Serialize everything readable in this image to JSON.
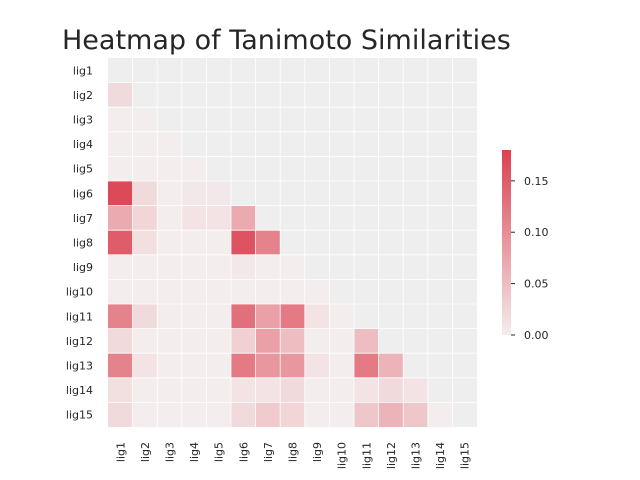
{
  "chart_data": {
    "type": "heatmap",
    "title": "Heatmap of Tanimoto Similarities",
    "xlabel": "",
    "ylabel": "",
    "mask": "lower-triangle (cells where column index >= row index shown as empty background)",
    "row_labels": [
      "lig1",
      "lig2",
      "lig3",
      "lig4",
      "lig5",
      "lig6",
      "lig7",
      "lig8",
      "lig9",
      "lig10",
      "lig11",
      "lig12",
      "lig13",
      "lig14",
      "lig15"
    ],
    "col_labels": [
      "lig1",
      "lig2",
      "lig3",
      "lig4",
      "lig5",
      "lig6",
      "lig7",
      "lig8",
      "lig9",
      "lig10",
      "lig11",
      "lig12",
      "lig13",
      "lig14",
      "lig15"
    ],
    "values": [
      [
        null,
        null,
        null,
        null,
        null,
        null,
        null,
        null,
        null,
        null,
        null,
        null,
        null,
        null,
        null
      ],
      [
        0.02,
        null,
        null,
        null,
        null,
        null,
        null,
        null,
        null,
        null,
        null,
        null,
        null,
        null,
        null
      ],
      [
        0.0,
        0.0,
        null,
        null,
        null,
        null,
        null,
        null,
        null,
        null,
        null,
        null,
        null,
        null,
        null
      ],
      [
        0.0,
        0.0,
        0.0,
        null,
        null,
        null,
        null,
        null,
        null,
        null,
        null,
        null,
        null,
        null,
        null
      ],
      [
        0.0,
        0.0,
        0.0,
        0.0,
        null,
        null,
        null,
        null,
        null,
        null,
        null,
        null,
        null,
        null,
        null
      ],
      [
        0.17,
        0.02,
        0.0,
        0.005,
        0.005,
        null,
        null,
        null,
        null,
        null,
        null,
        null,
        null,
        null,
        null
      ],
      [
        0.07,
        0.025,
        0.0,
        0.01,
        0.01,
        0.07,
        null,
        null,
        null,
        null,
        null,
        null,
        null,
        null,
        null
      ],
      [
        0.15,
        0.015,
        0.0,
        0.0,
        0.0,
        0.16,
        0.11,
        null,
        null,
        null,
        null,
        null,
        null,
        null,
        null
      ],
      [
        0.0,
        0.0,
        0.0,
        0.0,
        0.0,
        0.005,
        0.0,
        0.0,
        null,
        null,
        null,
        null,
        null,
        null,
        null
      ],
      [
        0.0,
        0.0,
        0.0,
        0.0,
        0.0,
        0.0,
        0.0,
        0.0,
        0.0,
        null,
        null,
        null,
        null,
        null,
        null
      ],
      [
        0.11,
        0.02,
        0.0,
        0.0,
        0.0,
        0.13,
        0.08,
        0.12,
        0.01,
        0.0,
        null,
        null,
        null,
        null,
        null
      ],
      [
        0.02,
        0.0,
        0.0,
        0.0,
        0.0,
        0.03,
        0.08,
        0.05,
        0.0,
        0.0,
        0.05,
        null,
        null,
        null,
        null
      ],
      [
        0.11,
        0.01,
        0.0,
        0.0,
        0.0,
        0.12,
        0.09,
        0.09,
        0.01,
        0.0,
        0.12,
        0.06,
        null,
        null,
        null
      ],
      [
        0.015,
        0.0,
        0.0,
        0.0,
        0.0,
        0.01,
        0.01,
        0.02,
        0.0,
        0.0,
        0.01,
        0.02,
        0.01,
        null,
        null
      ],
      [
        0.02,
        0.0,
        0.0,
        0.0,
        0.0,
        0.02,
        0.035,
        0.025,
        0.0,
        0.0,
        0.04,
        0.06,
        0.04,
        0.0,
        null
      ]
    ],
    "colorbar": {
      "vmin": 0.0,
      "vmax": 0.18,
      "ticks": [
        0.0,
        0.05,
        0.1,
        0.15
      ],
      "tick_labels": [
        "0.00",
        "0.05",
        "0.10",
        "0.15"
      ],
      "cmap_low": "#f4eded",
      "cmap_high": "#db4050"
    },
    "grid": true,
    "background_color": "#eeeeee",
    "gridline_color": "#ffffff"
  }
}
